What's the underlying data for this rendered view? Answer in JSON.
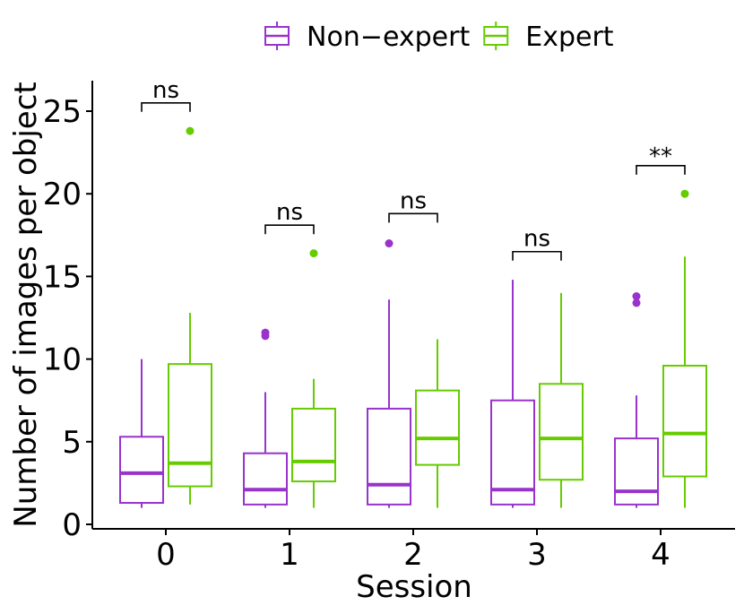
{
  "chart_data": {
    "type": "boxplot",
    "xlabel": "Session",
    "ylabel": "Number of images per object",
    "ylim": [
      0,
      26.5
    ],
    "yticks": [
      0,
      5,
      10,
      15,
      20,
      25
    ],
    "categories": [
      "0",
      "1",
      "2",
      "3",
      "4"
    ],
    "legend": {
      "position": "top"
    },
    "series": [
      {
        "name": "Non−expert",
        "color": "#9933CC",
        "boxes": [
          {
            "whisker_low": 1.0,
            "q1": 1.3,
            "median": 3.1,
            "q3": 5.3,
            "whisker_high": 10.0,
            "outliers": []
          },
          {
            "whisker_low": 1.0,
            "q1": 1.2,
            "median": 2.1,
            "q3": 4.3,
            "whisker_high": 8.0,
            "outliers": [
              11.4,
              11.6
            ]
          },
          {
            "whisker_low": 1.0,
            "q1": 1.2,
            "median": 2.4,
            "q3": 7.0,
            "whisker_high": 13.6,
            "outliers": [
              17.0
            ]
          },
          {
            "whisker_low": 1.0,
            "q1": 1.2,
            "median": 2.1,
            "q3": 7.5,
            "whisker_high": 14.8,
            "outliers": []
          },
          {
            "whisker_low": 1.0,
            "q1": 1.2,
            "median": 2.0,
            "q3": 5.2,
            "whisker_high": 7.8,
            "outliers": [
              13.4,
              13.8
            ]
          }
        ]
      },
      {
        "name": "Expert",
        "color": "#66CC00",
        "boxes": [
          {
            "whisker_low": 1.2,
            "q1": 2.3,
            "median": 3.7,
            "q3": 9.7,
            "whisker_high": 12.8,
            "outliers": [
              23.8
            ]
          },
          {
            "whisker_low": 1.0,
            "q1": 2.6,
            "median": 3.8,
            "q3": 7.0,
            "whisker_high": 8.8,
            "outliers": [
              16.4
            ]
          },
          {
            "whisker_low": 1.0,
            "q1": 3.6,
            "median": 5.2,
            "q3": 8.1,
            "whisker_high": 11.2,
            "outliers": []
          },
          {
            "whisker_low": 1.0,
            "q1": 2.7,
            "median": 5.2,
            "q3": 8.5,
            "whisker_high": 14.0,
            "outliers": []
          },
          {
            "whisker_low": 1.0,
            "q1": 2.9,
            "median": 5.5,
            "q3": 9.6,
            "whisker_high": 16.2,
            "outliers": [
              20.0
            ]
          }
        ]
      }
    ],
    "significance": [
      {
        "category": "0",
        "label": "ns",
        "y": 25.5
      },
      {
        "category": "1",
        "label": "ns",
        "y": 18.1
      },
      {
        "category": "2",
        "label": "ns",
        "y": 18.8
      },
      {
        "category": "3",
        "label": "ns",
        "y": 16.5
      },
      {
        "category": "4",
        "label": "**",
        "y": 21.7
      }
    ]
  }
}
